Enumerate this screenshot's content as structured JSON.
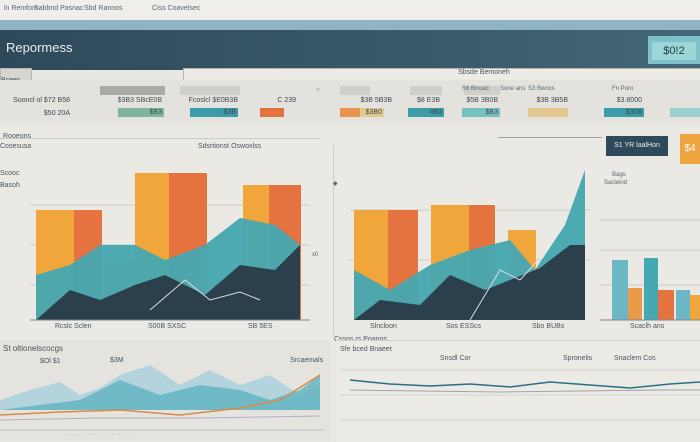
{
  "topbar": {
    "tabs": [
      "ln Remfom",
      "Sabbnd Pasnac",
      "Sbd Rannos",
      "Ciss Coavelsec"
    ]
  },
  "header": {
    "title": "Repormess",
    "badge": "$0!2"
  },
  "table": {
    "label_left": "Bcees",
    "label_right": "Sbsde Bemoneh",
    "row1": [
      "Sooncl ol $72 B58",
      "$3B3 SBcE0B",
      "Fcoslcl $E0B3B",
      "C 239",
      "$3B 5B3B",
      "$8 E3B",
      "$5B 3B0B",
      "$3B 3B5B",
      "$3.8000"
    ],
    "row2": [
      "$50 20A",
      "$B3",
      "$3B",
      "$3B0",
      "4B3",
      "$B3",
      "$30B"
    ],
    "tags": [
      "Sone ans",
      "S6 Bncaic",
      "S3 Bwncs",
      "Fn Poro"
    ]
  },
  "chart1": {
    "title": "Rooeons",
    "subtitle": "Sdsrtionst Oswoxlss",
    "ylabel": "Scooc",
    "xlabels": [
      "Rcslc Sclen",
      "S00B SXSC",
      "SB 5ES"
    ]
  },
  "chart2": {
    "xlabels": [
      "Slncloon",
      "Sos ESScs",
      "Sbo BUBs"
    ],
    "caption": "Cssgs rs Poanos"
  },
  "chart3": {
    "label": "S1 YR laalHon",
    "badge": "$4",
    "xlabel": "Scaclh ans",
    "legend": [
      "Bags",
      "Saclelnd"
    ]
  },
  "bottom_left": {
    "title": "St oltionelscocgs",
    "l1": "$Ol $1",
    "l2": "$3M",
    "l3": "Srcaemals"
  },
  "bottom_right": {
    "title": "Sfe bced Bnaeet",
    "l1": "Snsdl Cor",
    "l2": "Spronelis",
    "l3": "Snaclem Cos"
  }
}
